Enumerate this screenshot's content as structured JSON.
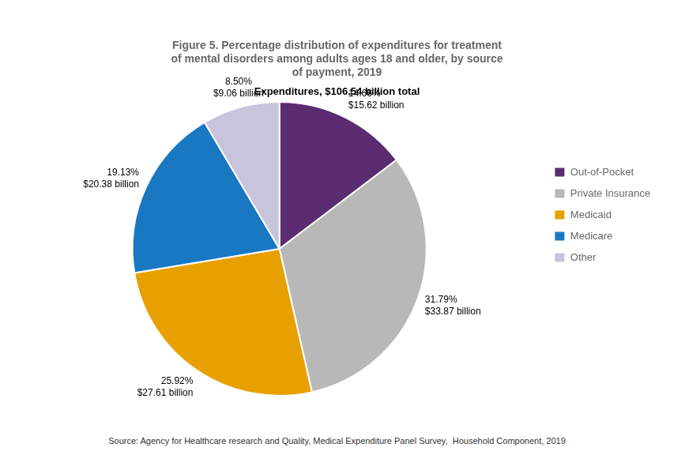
{
  "chart_data": {
    "type": "pie",
    "title": [
      "Figure 5. Percentage distribution of expenditures for treatment",
      "of mental disorders among adults ages 18 and older, by source",
      "of payment, 2019"
    ],
    "subtitle": "Expenditures, $106.54 billion total",
    "source": "Source: Agency for Healthcare research and Quality, Medical Expenditure Panel Survey,  Household Component, 2019",
    "categories": [
      "Out-of-Pocket",
      "Private Insurance",
      "Medicaid",
      "Medicare",
      "Other"
    ],
    "values": [
      14.66,
      31.79,
      25.92,
      19.13,
      8.5
    ],
    "value_labels": [
      [
        "14.66%",
        "$15.62 billion"
      ],
      [
        "31.79%",
        "$33.87 billion"
      ],
      [
        "25.92%",
        "$27.61 billion"
      ],
      [
        "19.13%",
        "$20.38 billion"
      ],
      [
        "8.50%",
        "$9.06 billion"
      ]
    ],
    "colors": [
      "#5b2c6f",
      "#b8b8b8",
      "#e8a000",
      "#1a78c2",
      "#c8c4dc"
    ],
    "data_labels": true,
    "legend": "right"
  }
}
